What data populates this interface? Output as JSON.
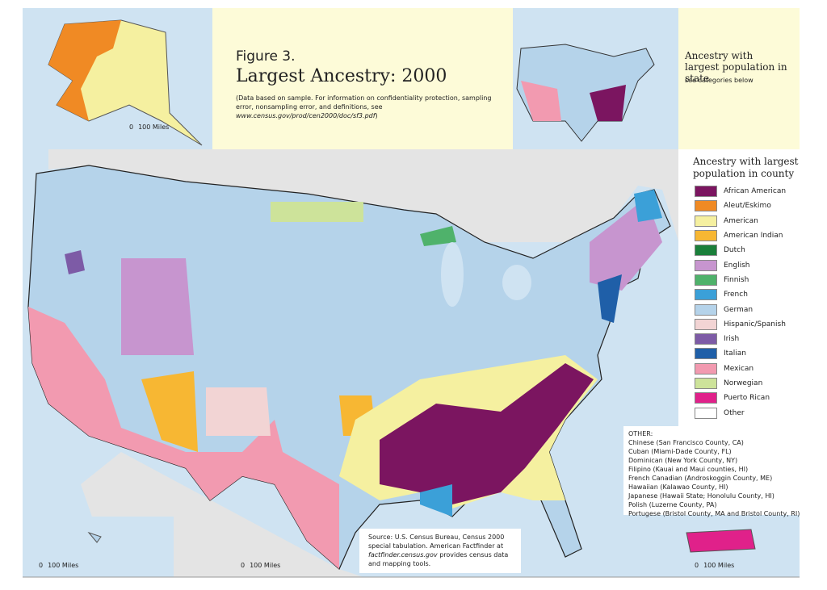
{
  "header": {
    "figure": "Figure 3.",
    "title": "Largest Ancestry: 2000",
    "note": "(Data based on sample. For information on confidentiality protection, sampling error, nonsampling error, and definitions, see",
    "note_url": "www.census.gov/prod/cen2000/doc/sf3.pdf",
    "note_end": ")"
  },
  "state_inset": {
    "title": "Ancestry with largest population in state",
    "subtitle": "see categories below"
  },
  "legend": {
    "title": "Ancestry with largest population in county",
    "items": [
      {
        "label": "African American",
        "color": "#7b1560"
      },
      {
        "label": "Aleut/Eskimo",
        "color": "#f08a24"
      },
      {
        "label": "American",
        "color": "#f5f0a0"
      },
      {
        "label": "American Indian",
        "color": "#f7b733"
      },
      {
        "label": "Dutch",
        "color": "#1a7f3a"
      },
      {
        "label": "English",
        "color": "#c795cf"
      },
      {
        "label": "Finnish",
        "color": "#4fb26b"
      },
      {
        "label": "French",
        "color": "#3ba0d8"
      },
      {
        "label": "German",
        "color": "#b5d3ea"
      },
      {
        "label": "Hispanic/Spanish",
        "color": "#f2d4d4"
      },
      {
        "label": "Irish",
        "color": "#7d5ba6"
      },
      {
        "label": "Italian",
        "color": "#1f5fa8"
      },
      {
        "label": "Mexican",
        "color": "#f29ab0"
      },
      {
        "label": "Norwegian",
        "color": "#cde39a"
      },
      {
        "label": "Puerto Rican",
        "color": "#e0218a"
      },
      {
        "label": "Other",
        "color": "#ffffff"
      }
    ]
  },
  "other": {
    "heading": "OTHER:",
    "items": [
      "Chinese (San Francisco County, CA)",
      "Cuban (Miami-Dade County, FL)",
      "Dominican (New York County, NY)",
      "Filipino (Kauai and Maui counties, HI)",
      "French Canadian (Androskoggin County, ME)",
      "Hawaiian (Kalawao County, HI)",
      "Japanese (Hawaii State; Honolulu County, HI)",
      "Polish (Luzerne County, PA)",
      "Portugese (Bristol County, MA and Bristol County, RI)"
    ]
  },
  "source": {
    "text": "Source: U.S. Census Bureau, Census 2000 special tabulation. American Factfinder at",
    "url": "factfinder.census.gov",
    "end": "provides census data and mapping tools."
  },
  "scale_bar": {
    "zero": "0",
    "label": "100 Miles"
  }
}
